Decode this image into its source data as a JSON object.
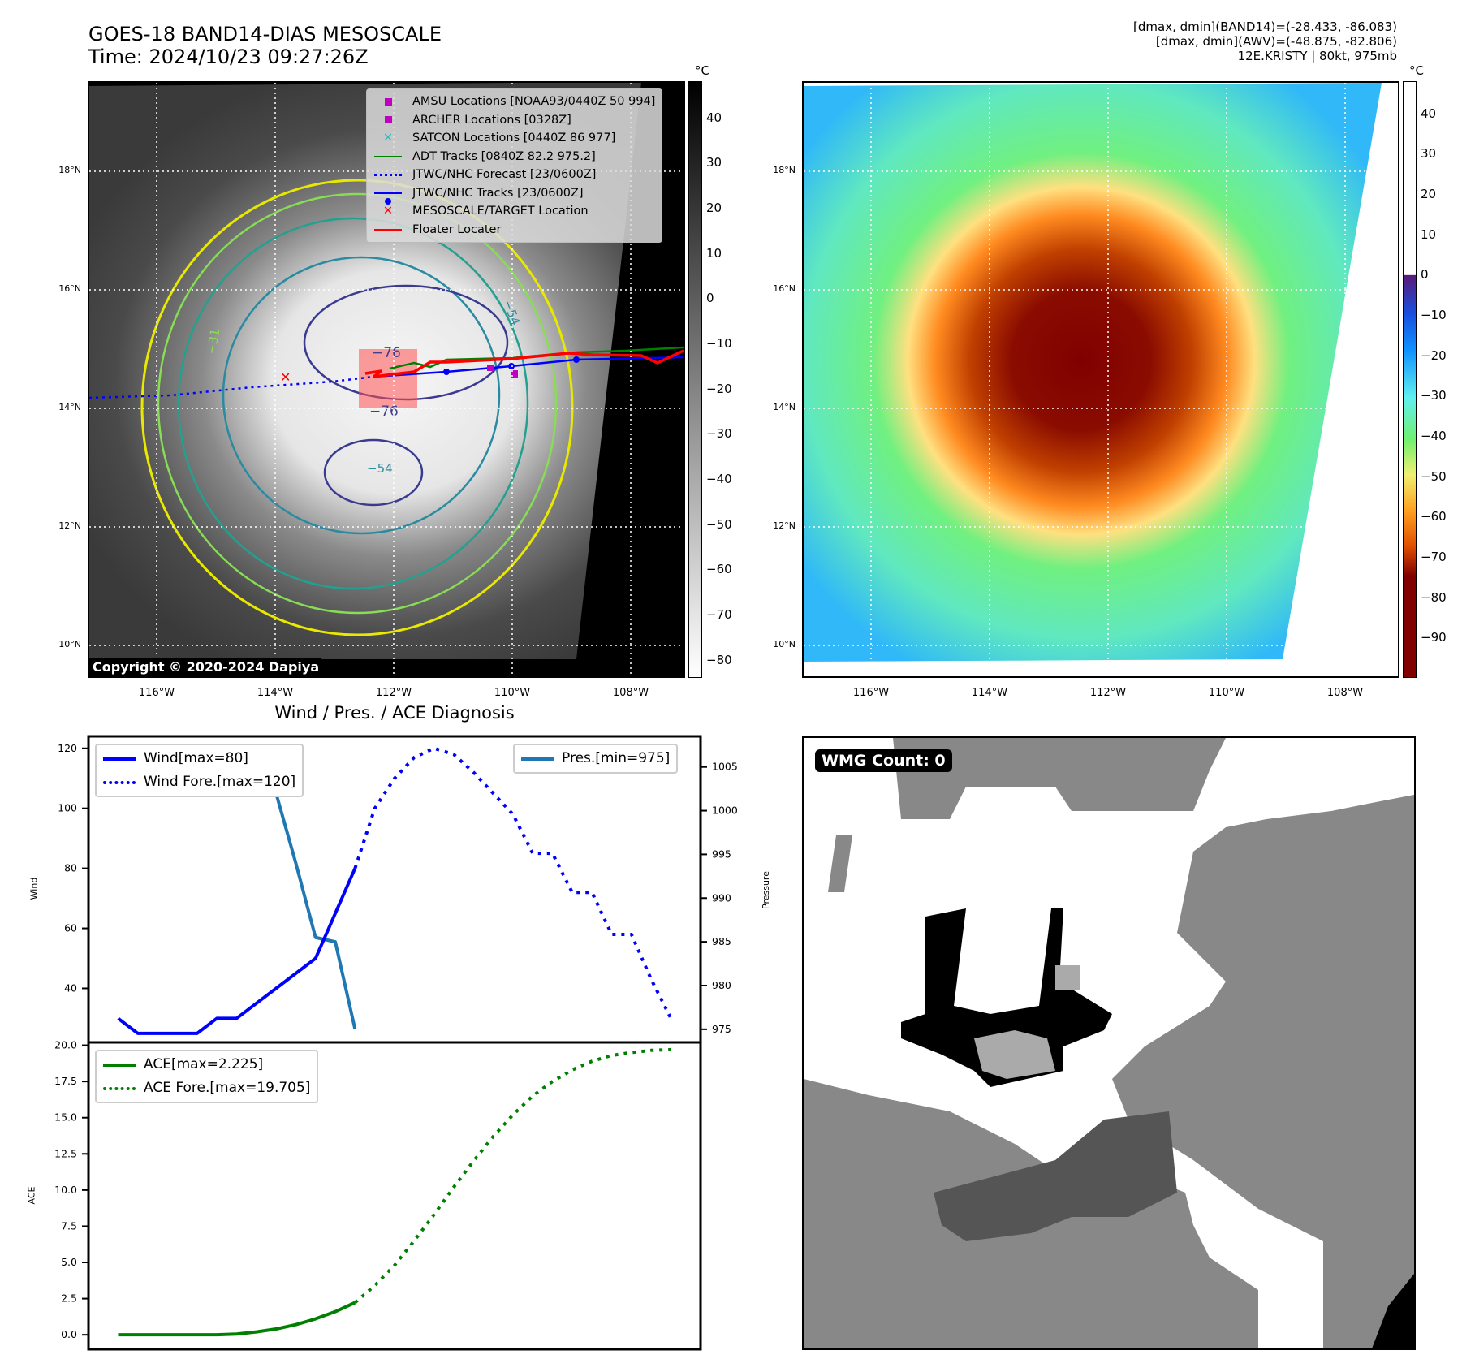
{
  "header": {
    "title_line1": "GOES-18 BAND14-DIAS MESOSCALE",
    "title_line2": "Time: 2024/10/23 09:27:26Z",
    "info_line1": "[dmax, dmin](BAND14)=(-28.433, -86.083)",
    "info_line2": "[dmax, dmin](AWV)=(-48.875, -82.806)",
    "info_line3": "12E.KRISTY | 80kt, 975mb"
  },
  "left_map": {
    "colorbar_unit": "°C",
    "colorbar_ticks": [
      "40",
      "30",
      "20",
      "10",
      "0",
      "−10",
      "−20",
      "−30",
      "−40",
      "−50",
      "−60",
      "−70",
      "−80"
    ],
    "colorbar_range": [
      48,
      -84
    ],
    "lat_labels": [
      "18°N",
      "16°N",
      "14°N",
      "12°N",
      "10°N"
    ],
    "lon_labels": [
      "116°W",
      "114°W",
      "112°W",
      "110°W",
      "108°W"
    ],
    "contour_labels": [
      "−76",
      "−76",
      "−54",
      "−54",
      "−31"
    ],
    "copyright": "Copyright © 2020-2024 Dapiya",
    "legend": [
      {
        "label": "AMSU Locations [NOAA93/0440Z 50 994]",
        "symbol": "square",
        "color": "#c000c0"
      },
      {
        "label": "ARCHER Locations [0328Z]",
        "symbol": "square",
        "color": "#c000c0"
      },
      {
        "label": "SATCON Locations [0440Z 86 977]",
        "symbol": "x",
        "color": "#20c0c0"
      },
      {
        "label": "ADT Tracks [0840Z 82.2 975.2]",
        "symbol": "line",
        "color": "#008000"
      },
      {
        "label": "JTWC/NHC Forecast [23/0600Z]",
        "symbol": "dotted",
        "color": "#0000ff"
      },
      {
        "label": "JTWC/NHC Tracks [23/0600Z]",
        "symbol": "line-dot",
        "color": "#0000ff"
      },
      {
        "label": "MESOSCALE/TARGET Location",
        "symbol": "x",
        "color": "#ff0000"
      },
      {
        "label": "Floater Locater",
        "symbol": "line",
        "color": "#ff0000"
      }
    ]
  },
  "right_map": {
    "colorbar_unit": "°C",
    "colorbar_ticks": [
      "40",
      "30",
      "20",
      "10",
      "0",
      "−10",
      "−20",
      "−30",
      "−40",
      "−50",
      "−60",
      "−70",
      "−80",
      "−90"
    ],
    "colorbar_range": [
      48,
      -100
    ],
    "lat_labels": [
      "18°N",
      "16°N",
      "14°N",
      "12°N",
      "10°N"
    ],
    "lon_labels": [
      "116°W",
      "114°W",
      "112°W",
      "110°W",
      "108°W"
    ]
  },
  "diagnosis": {
    "title": "Wind / Pres. / ACE Diagnosis",
    "wind_ylabel": "Wind",
    "pres_ylabel": "Pressure",
    "ace_ylabel": "ACE",
    "wind_legend": [
      "Wind[max=80]",
      "Wind Fore.[max=120]"
    ],
    "pres_legend": [
      "Pres.[min=975]"
    ],
    "ace_legend": [
      "ACE[max=2.225]",
      "ACE Fore.[max=19.705]"
    ]
  },
  "wmg": {
    "badge": "WMG Count: 0"
  },
  "chart_data": [
    {
      "type": "line",
      "title": "Wind / Pres. / ACE Diagnosis",
      "xlabel": "",
      "ylabel": "Wind",
      "ylim": [
        22,
        124
      ],
      "xlim": [
        -1.5,
        29.5
      ],
      "yticks": [
        40,
        60,
        80,
        100,
        120
      ],
      "series": [
        {
          "name": "Wind[max=80]",
          "style": "solid",
          "color": "#0000ff",
          "x": [
            0,
            1,
            2,
            3,
            4,
            5,
            6,
            7,
            8,
            9,
            10,
            11,
            12
          ],
          "y": [
            30,
            25,
            25,
            25,
            25,
            30,
            30,
            35,
            40,
            45,
            50,
            65,
            80
          ]
        },
        {
          "name": "Wind Fore.[max=120]",
          "style": "dotted",
          "color": "#0000ff",
          "x": [
            12,
            13,
            14,
            15,
            16,
            17,
            18,
            19,
            20,
            21,
            22,
            23,
            24,
            25,
            26,
            27,
            28
          ],
          "y": [
            80,
            100,
            110,
            117,
            120,
            118,
            112,
            105,
            98,
            85,
            85,
            72,
            72,
            58,
            58,
            43,
            30
          ]
        }
      ]
    },
    {
      "type": "line",
      "ylabel": "Pressure",
      "ylim": [
        973.5,
        1008.5
      ],
      "yticks": [
        975,
        980,
        985,
        990,
        995,
        1000,
        1005
      ],
      "series": [
        {
          "name": "Pres.[min=975]",
          "style": "solid",
          "color": "#1f77b4",
          "x": [
            0,
            1,
            2,
            3,
            4,
            5,
            6,
            7,
            8,
            9,
            10,
            11,
            12
          ],
          "y": [
            1006,
            1006,
            1006,
            1007.3,
            1007.3,
            1007.3,
            1005.5,
            1005.5,
            1002,
            994,
            985.5,
            985,
            975
          ]
        }
      ]
    },
    {
      "type": "line",
      "ylabel": "ACE",
      "ylim": [
        -1,
        20.2
      ],
      "yticks": [
        0.0,
        2.5,
        5.0,
        7.5,
        10.0,
        12.5,
        15.0,
        17.5,
        20.0
      ],
      "ytick_labels": [
        "0.0",
        "2.5",
        "5.0",
        "7.5",
        "10.0",
        "12.5",
        "15.0",
        "17.5",
        "20.0"
      ],
      "series": [
        {
          "name": "ACE[max=2.225]",
          "style": "solid",
          "color": "#008000",
          "x": [
            0,
            1,
            2,
            3,
            4,
            5,
            6,
            7,
            8,
            9,
            10,
            11,
            12
          ],
          "y": [
            0,
            0,
            0,
            0,
            0,
            0,
            0.05,
            0.2,
            0.4,
            0.7,
            1.1,
            1.6,
            2.225
          ]
        },
        {
          "name": "ACE Fore.[max=19.705]",
          "style": "dotted",
          "color": "#008000",
          "x": [
            12,
            13,
            14,
            15,
            16,
            17,
            18,
            19,
            20,
            21,
            22,
            23,
            24,
            25,
            26,
            27,
            28
          ],
          "y": [
            2.225,
            3.4,
            4.8,
            6.5,
            8.3,
            10.2,
            12.0,
            13.7,
            15.2,
            16.5,
            17.5,
            18.3,
            18.9,
            19.3,
            19.5,
            19.65,
            19.705
          ]
        }
      ]
    }
  ]
}
